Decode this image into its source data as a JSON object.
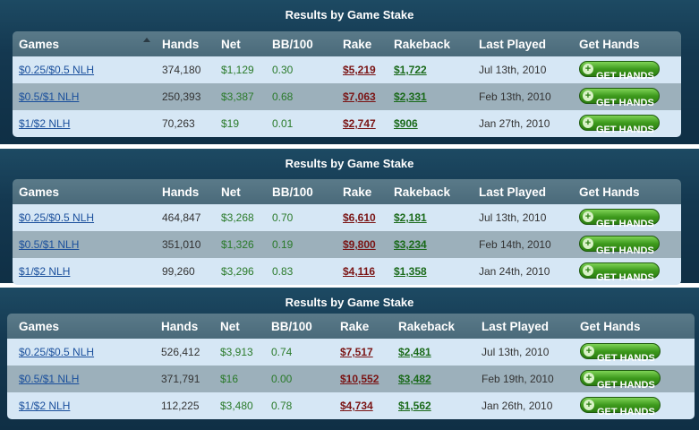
{
  "colors": {
    "panel_bg": "#143850",
    "header_bg": "#5a7a89",
    "row_light": "#d6e7f5",
    "row_dark": "#9cb0bb",
    "rake": "#7a1414",
    "rakeback": "#1a6a1a",
    "button": "#3e9a1d"
  },
  "sort_icon": "triangle-up-icon",
  "button_icon": "plus-circle-icon",
  "panels": [
    {
      "title": "Results by Game Stake",
      "headers": [
        "Games",
        "Hands",
        "Net",
        "BB/100",
        "Rake",
        "Rakeback",
        "Last Played",
        "Get Hands"
      ],
      "rows": [
        {
          "game": "$0.25/$0.5 NLH",
          "hands": "374,180",
          "net": "$1,129",
          "bb100": "0.30",
          "rake": "$5,219",
          "rakeback": "$1,722",
          "last_played": "Jul 13th, 2010",
          "button": "GET HANDS"
        },
        {
          "game": "$0.5/$1 NLH",
          "hands": "250,393",
          "net": "$3,387",
          "bb100": "0.68",
          "rake": "$7,063",
          "rakeback": "$2,331",
          "last_played": "Feb 13th, 2010",
          "button": "GET HANDS"
        },
        {
          "game": "$1/$2 NLH",
          "hands": "70,263",
          "net": "$19",
          "bb100": "0.01",
          "rake": "$2,747",
          "rakeback": "$906",
          "last_played": "Jan 27th, 2010",
          "button": "GET HANDS"
        }
      ]
    },
    {
      "title": "Results by Game Stake",
      "headers": [
        "Games",
        "Hands",
        "Net",
        "BB/100",
        "Rake",
        "Rakeback",
        "Last Played",
        "Get Hands"
      ],
      "rows": [
        {
          "game": "$0.25/$0.5 NLH",
          "hands": "464,847",
          "net": "$3,268",
          "bb100": "0.70",
          "rake": "$6,610",
          "rakeback": "$2,181",
          "last_played": "Jul 13th, 2010",
          "button": "GET HANDS"
        },
        {
          "game": "$0.5/$1 NLH",
          "hands": "351,010",
          "net": "$1,326",
          "bb100": "0.19",
          "rake": "$9,800",
          "rakeback": "$3,234",
          "last_played": "Feb 14th, 2010",
          "button": "GET HANDS"
        },
        {
          "game": "$1/$2 NLH",
          "hands": "99,260",
          "net": "$3,296",
          "bb100": "0.83",
          "rake": "$4,116",
          "rakeback": "$1,358",
          "last_played": "Jan 24th, 2010",
          "button": "GET HANDS"
        }
      ]
    },
    {
      "title": "Results by Game Stake",
      "headers": [
        "Games",
        "Hands",
        "Net",
        "BB/100",
        "Rake",
        "Rakeback",
        "Last Played",
        "Get Hands"
      ],
      "rows": [
        {
          "game": "$0.25/$0.5 NLH",
          "hands": "526,412",
          "net": "$3,913",
          "bb100": "0.74",
          "rake": "$7,517",
          "rakeback": "$2,481",
          "last_played": "Jul 13th, 2010",
          "button": "GET HANDS"
        },
        {
          "game": "$0.5/$1 NLH",
          "hands": "371,791",
          "net": "$16",
          "bb100": "0.00",
          "rake": "$10,552",
          "rakeback": "$3,482",
          "last_played": "Feb 19th, 2010",
          "button": "GET HANDS"
        },
        {
          "game": "$1/$2 NLH",
          "hands": "112,225",
          "net": "$3,480",
          "bb100": "0.78",
          "rake": "$4,734",
          "rakeback": "$1,562",
          "last_played": "Jan 26th, 2010",
          "button": "GET HANDS"
        }
      ]
    }
  ]
}
